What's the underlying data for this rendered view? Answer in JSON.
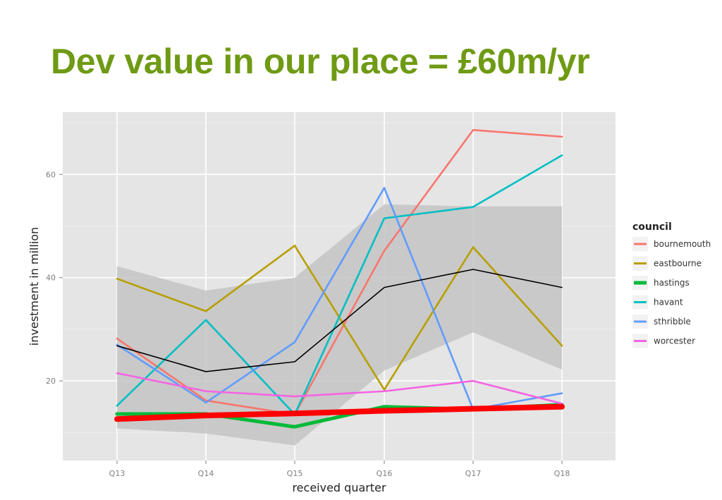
{
  "slide": {
    "title": "Dev value in our place = £60m/yr"
  },
  "chart_data": {
    "type": "line",
    "categories": [
      "Q13",
      "Q14",
      "Q15",
      "Q16",
      "Q17",
      "Q18"
    ],
    "xlabel": "received quarter",
    "ylabel": "investment in million",
    "ylim": [
      5,
      72
    ],
    "yticks": [
      20,
      40,
      60
    ],
    "grid": true,
    "legend": {
      "title": "council",
      "placement": "right"
    },
    "series": [
      {
        "name": "bournemouth",
        "color": "#f8766d",
        "values": [
          28.2,
          16.2,
          13.5,
          45.2,
          68.6,
          67.3
        ]
      },
      {
        "name": "eastbourne",
        "color": "#b79f00",
        "values": [
          39.8,
          33.5,
          46.2,
          18.3,
          45.9,
          26.8
        ]
      },
      {
        "name": "hastings",
        "color": "#00ba38",
        "values": [
          13.6,
          13.6,
          11.1,
          15.0,
          14.5,
          15.4
        ]
      },
      {
        "name": "havant",
        "color": "#00bfc4",
        "values": [
          15.2,
          31.8,
          13.5,
          51.5,
          53.7,
          63.7
        ]
      },
      {
        "name": "sthribble",
        "color": "#619cff",
        "values": [
          27.0,
          15.8,
          27.5,
          57.4,
          14.5,
          17.6
        ]
      },
      {
        "name": "worcester",
        "color": "#f564e3",
        "values": [
          21.5,
          18.0,
          17.0,
          18.0,
          20.0,
          15.6
        ]
      }
    ],
    "smooth_mean": {
      "color": "#000000",
      "values": [
        26.8,
        21.8,
        23.7,
        38.1,
        41.6,
        38.1
      ]
    },
    "smooth_band": {
      "upper": [
        42.2,
        37.5,
        40.0,
        54.2,
        53.8,
        53.8
      ],
      "lower": [
        10.8,
        9.8,
        7.5,
        22.0,
        29.4,
        22.2
      ]
    },
    "trend_line": {
      "color": "#ff0000",
      "values": [
        12.6,
        13.3,
        13.7,
        14.2,
        14.6,
        15.0
      ]
    }
  }
}
